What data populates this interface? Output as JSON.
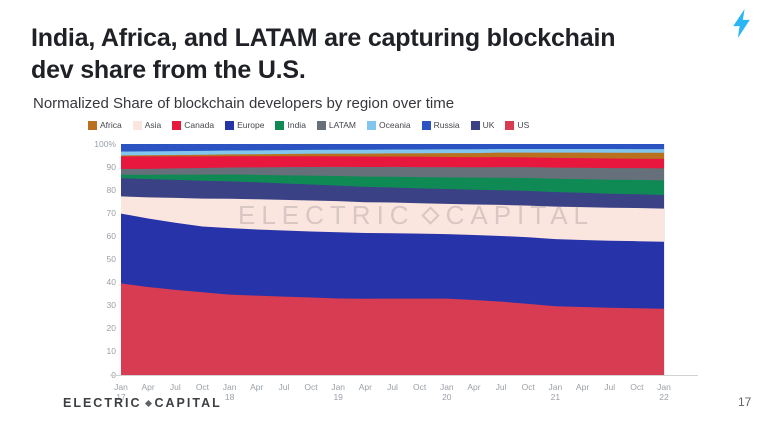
{
  "slide": {
    "title_line1": "India, Africa, and LATAM are capturing blockchain",
    "title_line2": "dev share from the U.S.",
    "subtitle": "Normalized Share of blockchain developers by region over time",
    "page_number": "17",
    "footer_logo": {
      "word1": "ELECTRIC",
      "word2": "CAPITAL"
    },
    "watermark": {
      "word1": "ELECTRIC",
      "word2": "CAPITAL"
    },
    "accent_color": "#2ab5f5"
  },
  "chart_data": {
    "type": "area",
    "stacked": true,
    "normalized_percent": true,
    "title": "Normalized Share of blockchain developers by region over time",
    "legend_position": "top",
    "grid": false,
    "ylim": [
      0,
      100
    ],
    "y_ticks": [
      "100%",
      "90",
      "80",
      "70",
      "60",
      "50",
      "40",
      "30",
      "20",
      "10",
      "0"
    ],
    "categories": [
      "Jan 17",
      "Apr 17",
      "Jul 17",
      "Oct 17",
      "Jan 18",
      "Apr 18",
      "Jul 18",
      "Oct 18",
      "Jan 19",
      "Apr 19",
      "Jul 19",
      "Oct 19",
      "Jan 20",
      "Apr 20",
      "Jul 20",
      "Oct 20",
      "Jan 21",
      "Apr 21",
      "Jul 21",
      "Oct 21",
      "Jan 22"
    ],
    "legend_order": [
      "Africa",
      "Asia",
      "Canada",
      "Europe",
      "India",
      "LATAM",
      "Oceania",
      "Russia",
      "UK",
      "US"
    ],
    "series": [
      {
        "name": "US",
        "color": "#d73c52",
        "values": [
          40.0,
          38.3,
          37.0,
          36.2,
          35.5,
          35.0,
          34.5,
          34.0,
          33.5,
          33.4,
          33.4,
          33.4,
          33.4,
          33.0,
          32.4,
          31.4,
          30.3,
          29.8,
          29.3,
          29.0,
          28.6
        ]
      },
      {
        "name": "Europe",
        "color": "#2733a9",
        "values": [
          30.5,
          29.8,
          29.2,
          28.8,
          29.4,
          29.2,
          29.1,
          29.0,
          29.0,
          28.8,
          28.6,
          28.4,
          28.2,
          28.6,
          29.0,
          29.4,
          29.6,
          29.4,
          29.2,
          29.1,
          28.9
        ]
      },
      {
        "name": "Asia",
        "color": "#fbe5df",
        "values": [
          7.5,
          9.2,
          10.8,
          12.2,
          13.0,
          13.3,
          13.5,
          13.6,
          13.6,
          13.5,
          13.4,
          13.3,
          13.2,
          13.4,
          13.7,
          14.0,
          14.3,
          14.4,
          14.4,
          14.4,
          14.3
        ]
      },
      {
        "name": "UK",
        "color": "#3a4184",
        "values": [
          8.0,
          7.9,
          7.8,
          7.8,
          7.7,
          7.5,
          7.2,
          7.0,
          6.8,
          6.7,
          6.6,
          6.5,
          6.5,
          6.5,
          6.5,
          6.5,
          6.4,
          6.3,
          6.1,
          6.0,
          5.9
        ]
      },
      {
        "name": "India",
        "color": "#108a55",
        "values": [
          1.5,
          1.9,
          2.3,
          2.7,
          3.0,
          3.3,
          3.6,
          3.9,
          4.2,
          4.5,
          4.7,
          4.9,
          5.1,
          5.3,
          5.5,
          5.7,
          5.9,
          6.0,
          6.1,
          6.2,
          6.3
        ]
      },
      {
        "name": "LATAM",
        "color": "#65707a",
        "values": [
          2.5,
          2.6,
          2.7,
          2.9,
          3.1,
          3.3,
          3.6,
          3.8,
          4.0,
          4.2,
          4.3,
          4.4,
          4.5,
          4.6,
          4.7,
          4.8,
          4.9,
          5.0,
          5.1,
          5.1,
          5.2
        ]
      },
      {
        "name": "Canada",
        "color": "#e8173d",
        "values": [
          5.5,
          5.4,
          5.2,
          5.1,
          5.0,
          4.9,
          4.8,
          4.7,
          4.6,
          4.6,
          4.5,
          4.5,
          4.4,
          4.4,
          4.4,
          4.3,
          4.3,
          4.2,
          4.2,
          4.1,
          4.1
        ]
      },
      {
        "name": "Africa",
        "color": "#b9701f",
        "values": [
          0.4,
          0.5,
          0.6,
          0.7,
          0.8,
          0.9,
          1.0,
          1.1,
          1.2,
          1.3,
          1.4,
          1.5,
          1.7,
          1.8,
          2.0,
          2.1,
          2.3,
          2.4,
          2.5,
          2.6,
          2.6
        ]
      },
      {
        "name": "Oceania",
        "color": "#82c6ee",
        "values": [
          1.7,
          1.7,
          1.7,
          1.7,
          1.7,
          1.7,
          1.7,
          1.7,
          1.7,
          1.7,
          1.7,
          1.7,
          1.7,
          1.7,
          1.6,
          1.6,
          1.6,
          1.6,
          1.6,
          1.6,
          1.6
        ]
      },
      {
        "name": "Russia",
        "color": "#2b54c2",
        "values": [
          3.3,
          3.2,
          3.1,
          3.0,
          2.9,
          2.8,
          2.7,
          2.6,
          2.5,
          2.5,
          2.4,
          2.4,
          2.3,
          2.3,
          2.2,
          2.2,
          2.2,
          2.2,
          2.2,
          2.2,
          2.2
        ]
      }
    ]
  }
}
